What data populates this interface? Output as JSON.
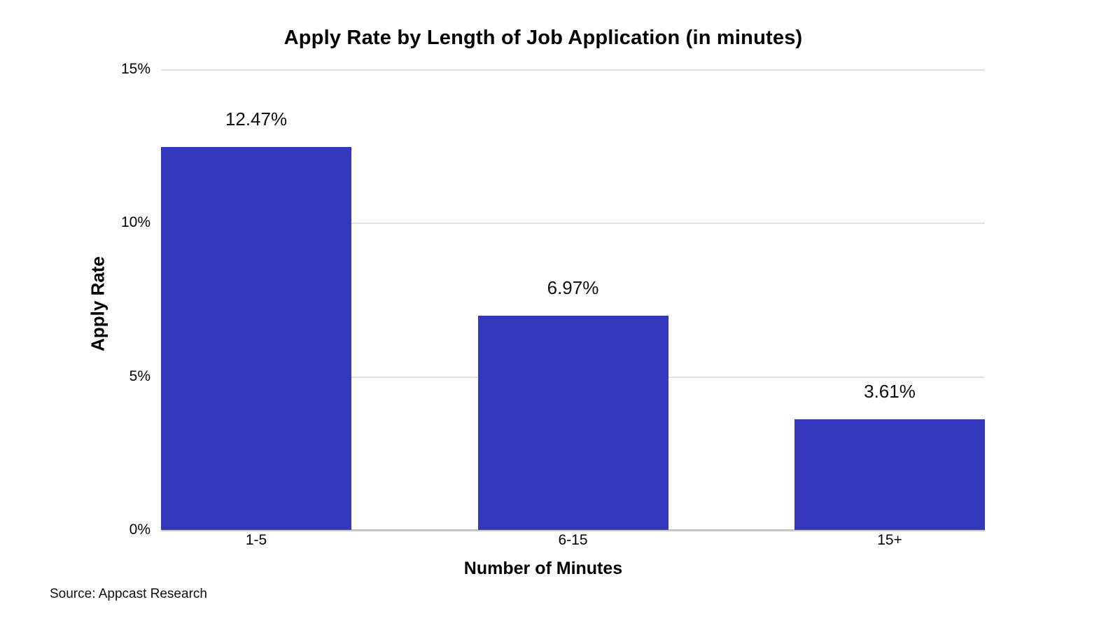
{
  "source": "Source: Appcast Research",
  "colors": {
    "bar": "#3438bd",
    "gridline": "#e3e3e3",
    "baseline": "#c6c6c6",
    "text": "#000000",
    "background": "#ffffff"
  },
  "chart_data": {
    "type": "bar",
    "title": "Apply Rate by Length of Job Application (in minutes)",
    "xlabel": "Number of Minutes",
    "ylabel": "Apply Rate",
    "categories": [
      "1-5",
      "6-15",
      "15+"
    ],
    "values": [
      12.47,
      6.97,
      3.61
    ],
    "data_labels": [
      "12.47%",
      "6.97%",
      "3.61%"
    ],
    "ylim": [
      0,
      15
    ],
    "yticks": [
      0,
      5,
      10,
      15
    ],
    "ytick_labels_top_to_bottom": [
      "15%",
      "10%",
      "5%",
      "0%"
    ],
    "grid": "horizontal",
    "legend": "none"
  }
}
